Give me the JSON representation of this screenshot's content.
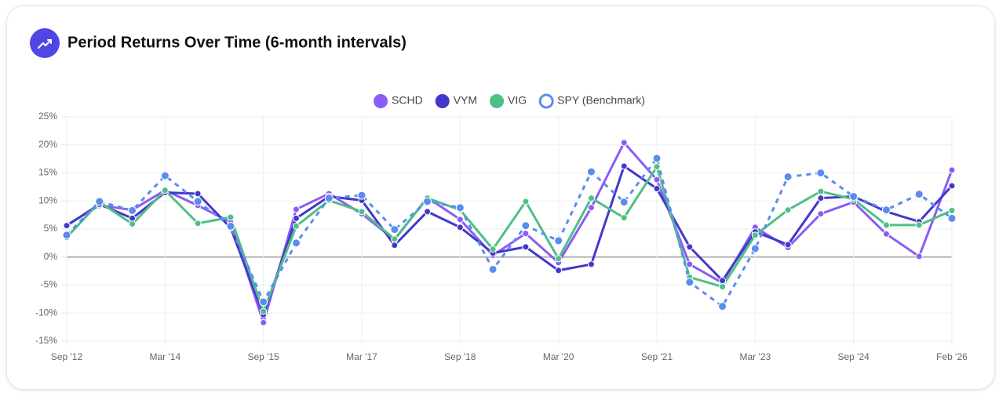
{
  "chart_data": {
    "type": "line",
    "title": "Period Returns Over Time (6-month intervals)",
    "categories": [
      "Sep '12",
      null,
      null,
      "Mar '14",
      null,
      null,
      "Sep '15",
      null,
      null,
      "Mar '17",
      null,
      null,
      "Sep '18",
      null,
      null,
      "Mar '20",
      null,
      null,
      "Sep '21",
      null,
      null,
      "Mar '23",
      null,
      null,
      "Sep '24",
      null,
      null,
      "Feb '26"
    ],
    "series": [
      {
        "name": "SCHD",
        "color": "#8b5cf6",
        "dashed": false,
        "values": [
          5.7,
          9.2,
          8.4,
          11.9,
          9.2,
          6.2,
          -11.7,
          8.5,
          11.3,
          7.7,
          3.1,
          10.6,
          6.7,
          0.3,
          4.2,
          -1.0,
          8.8,
          20.4,
          13.8,
          -1.3,
          -4.6,
          5.3,
          1.7,
          7.7,
          9.8,
          4.1,
          0.1,
          15.5
        ]
      },
      {
        "name": "VYM",
        "color": "#4338ca",
        "dashed": false,
        "values": [
          5.6,
          9.4,
          6.9,
          11.5,
          11.3,
          5.2,
          -10.3,
          6.9,
          10.8,
          10.1,
          2.1,
          8.1,
          5.3,
          0.7,
          1.8,
          -2.4,
          -1.3,
          16.2,
          12.2,
          1.8,
          -4.2,
          4.5,
          2.2,
          10.5,
          10.8,
          8.1,
          6.3,
          12.7
        ]
      },
      {
        "name": "VIG",
        "color": "#4fbf85",
        "dashed": false,
        "values": [
          3.5,
          9.8,
          5.9,
          11.9,
          6.0,
          7.1,
          -9.7,
          5.5,
          10.1,
          8.1,
          3.2,
          10.5,
          8.4,
          1.4,
          9.9,
          -0.3,
          10.5,
          7.0,
          16.1,
          -3.6,
          -5.3,
          3.9,
          8.4,
          11.7,
          10.3,
          5.7,
          5.7,
          8.3
        ]
      },
      {
        "name": "SPY (Benchmark)",
        "color": "#5b8def",
        "dashed": true,
        "values": [
          3.9,
          9.9,
          8.3,
          14.5,
          9.9,
          5.5,
          -8.0,
          2.5,
          10.5,
          11.0,
          4.9,
          9.9,
          8.8,
          -2.2,
          5.6,
          2.9,
          15.2,
          9.8,
          17.6,
          -4.5,
          -8.8,
          1.5,
          14.3,
          15.0,
          10.8,
          8.4,
          11.2,
          6.9
        ]
      }
    ],
    "ylim": [
      -15,
      25
    ],
    "yticks": [
      {
        "value": -15,
        "label": "-15%"
      },
      {
        "value": -10,
        "label": "-10%"
      },
      {
        "value": -5,
        "label": "-5%"
      },
      {
        "value": 0,
        "label": "0%"
      },
      {
        "value": 5,
        "label": "5%"
      },
      {
        "value": 10,
        "label": "10%"
      },
      {
        "value": 15,
        "label": "15%"
      },
      {
        "value": 20,
        "label": "20%"
      },
      {
        "value": 25,
        "label": "25%"
      }
    ],
    "grid": true,
    "legend": "top"
  }
}
